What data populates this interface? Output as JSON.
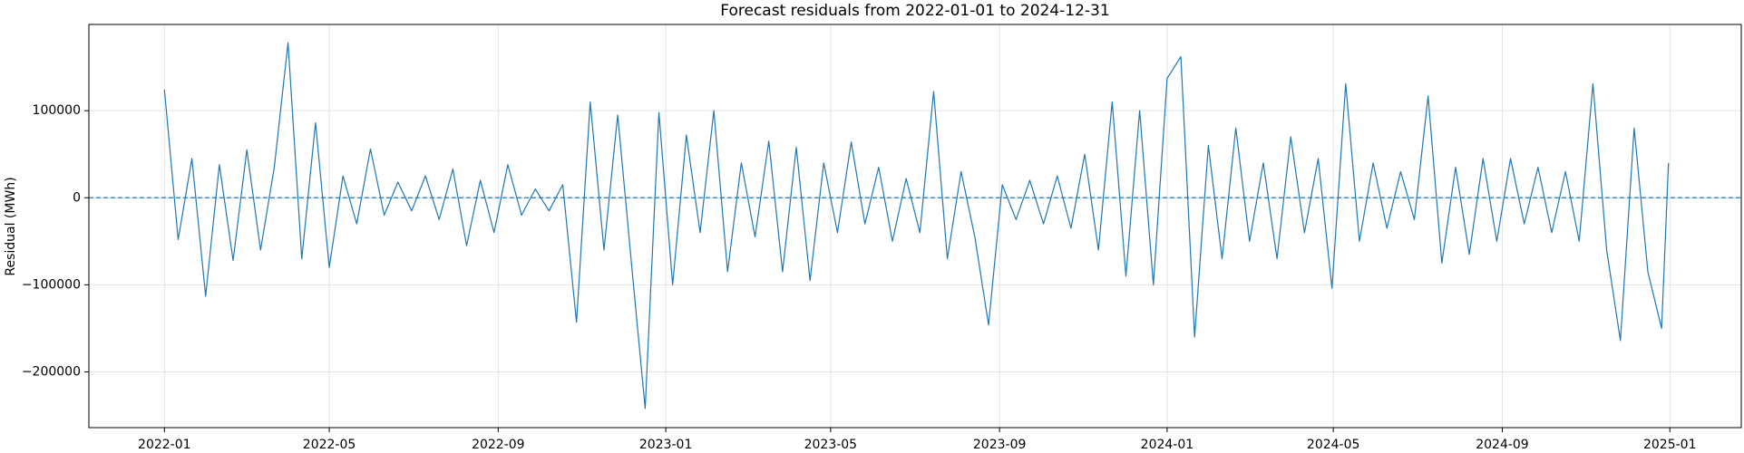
{
  "chart_data": {
    "type": "line",
    "title": "Forecast residuals from 2022-01-01 to 2024-12-31",
    "ylabel": "Residual (MWh)",
    "grid": true,
    "hline": 0,
    "xlim": [
      "2021-11-07",
      "2025-02-22"
    ],
    "ylim": [
      -264000,
      199000
    ],
    "xticks": [
      {
        "value": "2022-01-01",
        "label": "2022-01"
      },
      {
        "value": "2022-05-01",
        "label": "2022-05"
      },
      {
        "value": "2022-09-01",
        "label": "2022-09"
      },
      {
        "value": "2023-01-01",
        "label": "2023-01"
      },
      {
        "value": "2023-05-01",
        "label": "2023-05"
      },
      {
        "value": "2023-09-01",
        "label": "2023-09"
      },
      {
        "value": "2024-01-01",
        "label": "2024-01"
      },
      {
        "value": "2024-05-01",
        "label": "2024-05"
      },
      {
        "value": "2024-09-01",
        "label": "2024-09"
      },
      {
        "value": "2025-01-01",
        "label": "2025-01"
      }
    ],
    "yticks": [
      {
        "value": -200000,
        "label": "−200000"
      },
      {
        "value": -100000,
        "label": "−100000"
      },
      0,
      100000
    ],
    "x": [
      "2022-01-01",
      "2022-01-11",
      "2022-01-21",
      "2022-01-31",
      "2022-02-10",
      "2022-02-20",
      "2022-03-02",
      "2022-03-12",
      "2022-03-22",
      "2022-04-01",
      "2022-04-11",
      "2022-04-21",
      "2022-05-01",
      "2022-05-11",
      "2022-05-21",
      "2022-05-31",
      "2022-06-10",
      "2022-06-20",
      "2022-06-30",
      "2022-07-10",
      "2022-07-20",
      "2022-07-30",
      "2022-08-09",
      "2022-08-19",
      "2022-08-29",
      "2022-09-08",
      "2022-09-18",
      "2022-09-28",
      "2022-10-08",
      "2022-10-18",
      "2022-10-28",
      "2022-11-07",
      "2022-11-17",
      "2022-11-27",
      "2022-12-07",
      "2022-12-17",
      "2022-12-27",
      "2023-01-06",
      "2023-01-16",
      "2023-01-26",
      "2023-02-05",
      "2023-02-15",
      "2023-02-25",
      "2023-03-07",
      "2023-03-17",
      "2023-03-27",
      "2023-04-06",
      "2023-04-16",
      "2023-04-26",
      "2023-05-06",
      "2023-05-16",
      "2023-05-26",
      "2023-06-05",
      "2023-06-15",
      "2023-06-25",
      "2023-07-05",
      "2023-07-15",
      "2023-07-25",
      "2023-08-04",
      "2023-08-14",
      "2023-08-24",
      "2023-09-03",
      "2023-09-13",
      "2023-09-23",
      "2023-10-03",
      "2023-10-13",
      "2023-10-23",
      "2023-11-02",
      "2023-11-12",
      "2023-11-22",
      "2023-12-02",
      "2023-12-12",
      "2023-12-22",
      "2024-01-01",
      "2024-01-11",
      "2024-01-21",
      "2024-01-31",
      "2024-02-10",
      "2024-02-20",
      "2024-03-01",
      "2024-03-11",
      "2024-03-21",
      "2024-03-31",
      "2024-04-10",
      "2024-04-20",
      "2024-04-30",
      "2024-05-10",
      "2024-05-20",
      "2024-05-30",
      "2024-06-09",
      "2024-06-19",
      "2024-06-29",
      "2024-07-09",
      "2024-07-19",
      "2024-07-29",
      "2024-08-08",
      "2024-08-18",
      "2024-08-28",
      "2024-09-07",
      "2024-09-17",
      "2024-09-27",
      "2024-10-07",
      "2024-10-17",
      "2024-10-27",
      "2024-11-06",
      "2024-11-16",
      "2024-11-26",
      "2024-12-06",
      "2024-12-16",
      "2024-12-26",
      "2024-12-31"
    ],
    "series": [
      {
        "name": "Residual",
        "color": "#1f77b4",
        "values": [
          124000,
          -48000,
          45000,
          -113000,
          38000,
          -72000,
          55000,
          -60000,
          35000,
          178000,
          -70000,
          86000,
          -80000,
          25000,
          -30000,
          56000,
          -20000,
          18000,
          -15000,
          25000,
          -25000,
          33000,
          -55000,
          20000,
          -40000,
          38000,
          -20000,
          10000,
          -15000,
          15000,
          -143000,
          110000,
          -60000,
          95000,
          -75000,
          -242000,
          98000,
          -100000,
          72000,
          -40000,
          100000,
          -85000,
          40000,
          -45000,
          65000,
          -85000,
          58000,
          -95000,
          40000,
          -40000,
          64000,
          -30000,
          35000,
          -50000,
          22000,
          -40000,
          122000,
          -70000,
          30000,
          -45000,
          -146000,
          15000,
          -25000,
          20000,
          -30000,
          25000,
          -35000,
          50000,
          -60000,
          110000,
          -90000,
          100000,
          -100000,
          137000,
          162000,
          -160000,
          60000,
          -70000,
          80000,
          -50000,
          40000,
          -70000,
          70000,
          -40000,
          45000,
          -104000,
          131000,
          -50000,
          40000,
          -35000,
          30000,
          -25000,
          117000,
          -75000,
          35000,
          -65000,
          45000,
          -50000,
          45000,
          -30000,
          35000,
          -40000,
          30000,
          -50000,
          131000,
          -60000,
          -164000,
          80000,
          -85000,
          -150000,
          40000
        ]
      }
    ]
  }
}
